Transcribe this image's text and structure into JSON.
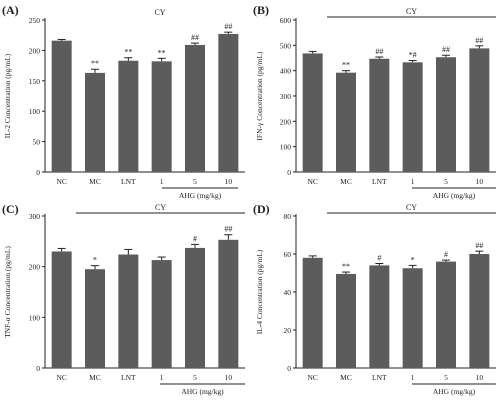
{
  "chart_data": [
    {
      "type": "bar",
      "panel_label": "(A)",
      "ylabel": "IL-2 Concentration (pg/mL)",
      "ylim": [
        0,
        250
      ],
      "yticks": [
        0,
        50,
        100,
        150,
        200,
        250
      ],
      "categories": [
        "NC",
        "MC",
        "LNT",
        "1",
        "5",
        "10"
      ],
      "values": [
        216,
        163,
        183,
        182,
        209,
        227
      ],
      "errors": [
        2,
        6,
        5,
        5,
        3,
        3
      ],
      "annotations": [
        "",
        "**",
        "**",
        "**",
        "##",
        "##"
      ],
      "group_label": "CY",
      "dose_label": "AHG (mg/kg)",
      "color": "#5c5c5c"
    },
    {
      "type": "bar",
      "panel_label": "(B)",
      "ylabel": "IFN-γ Concentration (pg/mL)",
      "ylim": [
        0,
        600
      ],
      "yticks": [
        0,
        100,
        200,
        300,
        400,
        500,
        600
      ],
      "categories": [
        "NC",
        "MC",
        "LNT",
        "1",
        "5",
        "10"
      ],
      "values": [
        468,
        392,
        447,
        433,
        453,
        488
      ],
      "errors": [
        8,
        8,
        7,
        7,
        8,
        10
      ],
      "annotations": [
        "",
        "**",
        "##",
        "*#",
        "##",
        "##"
      ],
      "group_label": "CY",
      "dose_label": "AHG (mg/kg)",
      "color": "#5c5c5c"
    },
    {
      "type": "bar",
      "panel_label": "(C)",
      "ylabel": "TNF-α Concentration (pg/mL)",
      "ylim": [
        0,
        300
      ],
      "yticks": [
        0,
        100,
        200,
        300
      ],
      "categories": [
        "NC",
        "MC",
        "LNT",
        "1",
        "5",
        "10"
      ],
      "values": [
        230,
        195,
        224,
        213,
        237,
        253
      ],
      "errors": [
        6,
        7,
        10,
        6,
        7,
        10
      ],
      "annotations": [
        "",
        "*",
        "",
        "",
        "#",
        "##"
      ],
      "group_label": "CY",
      "dose_label": "AHG (mg/kg)",
      "color": "#5c5c5c"
    },
    {
      "type": "bar",
      "panel_label": "(D)",
      "ylabel": "IL-4 Concentration (pg/mL)",
      "ylim": [
        0,
        80
      ],
      "yticks": [
        0,
        20,
        40,
        60,
        80
      ],
      "categories": [
        "NC",
        "MC",
        "LNT",
        "1",
        "5",
        "10"
      ],
      "values": [
        58,
        49.5,
        54,
        52.5,
        56,
        60
      ],
      "errors": [
        1,
        1,
        1,
        1.5,
        0.8,
        1.5
      ],
      "annotations": [
        "",
        "**",
        "#",
        "*",
        "#",
        "##"
      ],
      "group_label": "CY",
      "dose_label": "AHG (mg/kg)",
      "color": "#5c5c5c"
    }
  ]
}
